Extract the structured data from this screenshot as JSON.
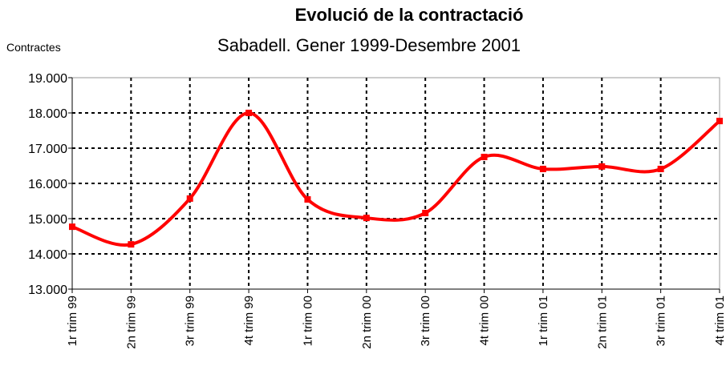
{
  "chart_data": {
    "type": "line",
    "title": "Evolució de la contractació",
    "subtitle": "Sabadell. Gener 1999-Desembre 2001",
    "y_label": "Contractes",
    "categories": [
      "1r trim 99",
      "2n trim 99",
      "3r trim 99",
      "4t trim 99",
      "1r trim 00",
      "2n trim 00",
      "3r trim 00",
      "4t trim 00",
      "1r trim 01",
      "2n trim 01",
      "3r trim 01",
      "4t trim 01"
    ],
    "series": [
      {
        "name": "Contractes",
        "color": "#ff0000",
        "values": [
          14770,
          14270,
          15570,
          18000,
          15545,
          15020,
          15160,
          16750,
          16410,
          16480,
          16410,
          17770
        ]
      }
    ],
    "ylim": [
      13000,
      19000
    ],
    "yticks": [
      {
        "value": 13000,
        "label": "13.000"
      },
      {
        "value": 14000,
        "label": "14.000"
      },
      {
        "value": 15000,
        "label": "15.000"
      },
      {
        "value": 16000,
        "label": "16.000"
      },
      {
        "value": 17000,
        "label": "17.000"
      },
      {
        "value": 18000,
        "label": "18.000"
      },
      {
        "value": 19000,
        "label": "19.000"
      }
    ],
    "grid": true,
    "smooth": true
  }
}
